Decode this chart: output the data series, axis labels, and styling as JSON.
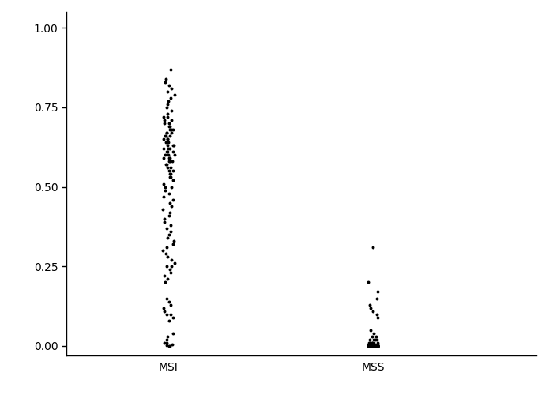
{
  "groups": [
    "MSI",
    "MSS"
  ],
  "group_positions": [
    1,
    2
  ],
  "background_color": "#ffffff",
  "point_color": "#000000",
  "point_size": 8,
  "ylim": [
    -0.03,
    1.05
  ],
  "yticks": [
    0.0,
    0.25,
    0.5,
    0.75,
    1.0
  ],
  "ytick_labels": [
    "0.00",
    "0.25",
    "0.50",
    "0.75",
    "1.00"
  ],
  "tick_fontsize": 10,
  "jitter_msi": 0.03,
  "jitter_mss": 0.025,
  "msi_data": [
    0.87,
    0.84,
    0.83,
    0.82,
    0.81,
    0.8,
    0.79,
    0.78,
    0.77,
    0.76,
    0.75,
    0.74,
    0.73,
    0.72,
    0.72,
    0.71,
    0.71,
    0.7,
    0.7,
    0.69,
    0.69,
    0.68,
    0.68,
    0.68,
    0.67,
    0.67,
    0.67,
    0.66,
    0.66,
    0.66,
    0.65,
    0.65,
    0.65,
    0.64,
    0.64,
    0.64,
    0.63,
    0.63,
    0.63,
    0.62,
    0.62,
    0.62,
    0.61,
    0.61,
    0.61,
    0.6,
    0.6,
    0.6,
    0.59,
    0.59,
    0.59,
    0.58,
    0.58,
    0.58,
    0.57,
    0.57,
    0.56,
    0.56,
    0.55,
    0.55,
    0.54,
    0.54,
    0.53,
    0.53,
    0.52,
    0.51,
    0.5,
    0.5,
    0.49,
    0.48,
    0.47,
    0.46,
    0.45,
    0.44,
    0.43,
    0.42,
    0.41,
    0.4,
    0.39,
    0.38,
    0.37,
    0.36,
    0.35,
    0.34,
    0.33,
    0.32,
    0.31,
    0.3,
    0.29,
    0.28,
    0.27,
    0.26,
    0.25,
    0.25,
    0.24,
    0.23,
    0.22,
    0.21,
    0.2,
    0.15,
    0.14,
    0.13,
    0.12,
    0.11,
    0.1,
    0.1,
    0.09,
    0.08,
    0.04,
    0.03,
    0.02,
    0.01,
    0.01,
    0.005,
    0.002,
    0.001,
    0.0
  ],
  "mss_data": [
    0.31,
    0.2,
    0.17,
    0.15,
    0.13,
    0.12,
    0.11,
    0.1,
    0.09,
    0.05,
    0.04,
    0.03,
    0.03,
    0.02,
    0.02,
    0.02,
    0.02,
    0.01,
    0.01,
    0.01,
    0.01,
    0.01,
    0.01,
    0.005,
    0.005,
    0.005,
    0.005,
    0.005,
    0.003,
    0.003,
    0.003,
    0.003,
    0.002,
    0.002,
    0.002,
    0.002,
    0.002,
    0.001,
    0.001,
    0.001,
    0.001,
    0.001,
    0.001,
    0.001,
    0.001,
    0.0005,
    0.0005,
    0.0005,
    0.0005,
    0.0005,
    0.0002,
    0.0002,
    0.0002,
    0.0002,
    0.0002,
    0.0002,
    0.0001,
    0.0001,
    0.0001,
    0.0001,
    0.0001,
    0.0001,
    0.0001,
    0.0001,
    5e-05,
    5e-05,
    5e-05,
    5e-05,
    5e-05,
    5e-05,
    5e-05,
    5e-05,
    5e-05,
    5e-05,
    1e-05,
    1e-05,
    1e-05,
    1e-05,
    1e-05,
    1e-05,
    1e-05,
    1e-05,
    1e-05,
    1e-05,
    1e-06,
    1e-06,
    1e-06,
    1e-06,
    1e-06,
    1e-06,
    1e-06,
    1e-06,
    1e-06,
    1e-06,
    0.0,
    0.0,
    0.0,
    0.0,
    0.0,
    0.0,
    0.0,
    0.0,
    0.0,
    0.0,
    0.0,
    0.0,
    0.0,
    0.0,
    0.0,
    0.0,
    0.0,
    0.0,
    0.0,
    0.0,
    0.0,
    0.0,
    0.0,
    0.0,
    0.0,
    0.0,
    0.0,
    0.0,
    0.0,
    0.0,
    0.0,
    0.0,
    0.0,
    0.0,
    0.0,
    0.0,
    0.0,
    0.0,
    0.0,
    0.0,
    0.0,
    0.0,
    0.0,
    0.0,
    0.0,
    0.0,
    0.0,
    0.0,
    0.0,
    0.0,
    0.0,
    0.0,
    0.0,
    0.0,
    0.0,
    0.0,
    0.0,
    0.0,
    0.0,
    0.0,
    0.0,
    0.0,
    0.0,
    0.0,
    0.0,
    0.0,
    0.0,
    0.0,
    0.0,
    0.0,
    0.0,
    0.0,
    0.0,
    0.0,
    0.0,
    0.0,
    0.0,
    0.0,
    0.0,
    0.0
  ]
}
